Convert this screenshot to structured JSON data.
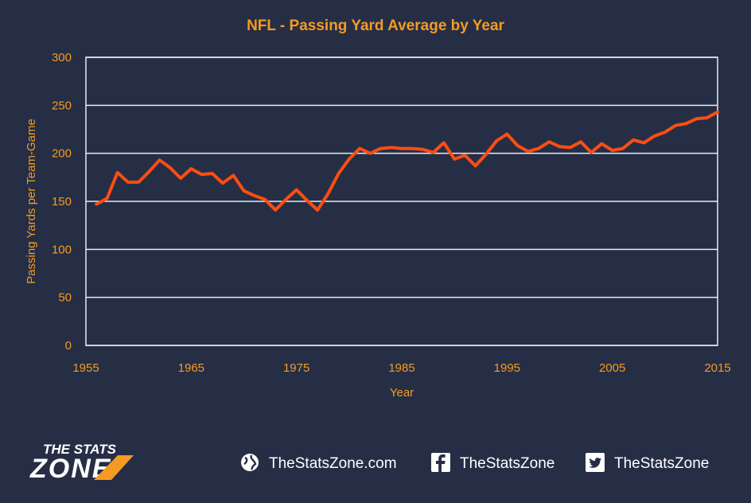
{
  "chart_data": {
    "type": "line",
    "title": "NFL - Passing Yard Average by Year",
    "xlabel": "Year",
    "ylabel": "Passing Yards per Team-Game",
    "xlim": [
      1955,
      2015
    ],
    "ylim": [
      0,
      300
    ],
    "xticks": [
      "1955",
      "1965",
      "1975",
      "1985",
      "1995",
      "2005",
      "2015"
    ],
    "yticks": [
      "0",
      "50",
      "100",
      "150",
      "200",
      "250",
      "300"
    ],
    "grid": true,
    "series": [
      {
        "color": "#ff4d12",
        "x": [
          1956,
          1957,
          1958,
          1959,
          1960,
          1961,
          1962,
          1963,
          1964,
          1965,
          1966,
          1967,
          1968,
          1969,
          1970,
          1971,
          1972,
          1973,
          1974,
          1975,
          1976,
          1977,
          1978,
          1979,
          1980,
          1981,
          1982,
          1983,
          1984,
          1985,
          1986,
          1987,
          1988,
          1989,
          1990,
          1991,
          1992,
          1993,
          1994,
          1995,
          1996,
          1997,
          1998,
          1999,
          2000,
          2001,
          2002,
          2003,
          2004,
          2005,
          2006,
          2007,
          2008,
          2009,
          2010,
          2011,
          2012,
          2013,
          2014,
          2015
        ],
        "values": [
          147,
          153,
          180,
          170,
          170,
          181,
          193,
          185,
          174,
          184,
          178,
          179,
          169,
          177,
          161,
          156,
          152,
          141,
          152,
          162,
          151,
          141,
          158,
          179,
          194,
          205,
          200,
          205,
          206,
          205,
          205,
          204,
          201,
          211,
          194,
          198,
          187,
          199,
          213,
          220,
          208,
          202,
          205,
          212,
          207,
          206,
          212,
          201,
          210,
          203,
          205,
          214,
          211,
          218,
          222,
          229,
          231,
          236,
          237,
          243
        ]
      }
    ]
  },
  "footer": {
    "logo_line1": "THE STATS",
    "logo_line2": "ZONE",
    "website": "TheStatsZone.com",
    "facebook": "TheStatsZone",
    "twitter": "TheStatsZone",
    "icons": [
      "globe-icon",
      "facebook-icon",
      "twitter-icon"
    ]
  }
}
